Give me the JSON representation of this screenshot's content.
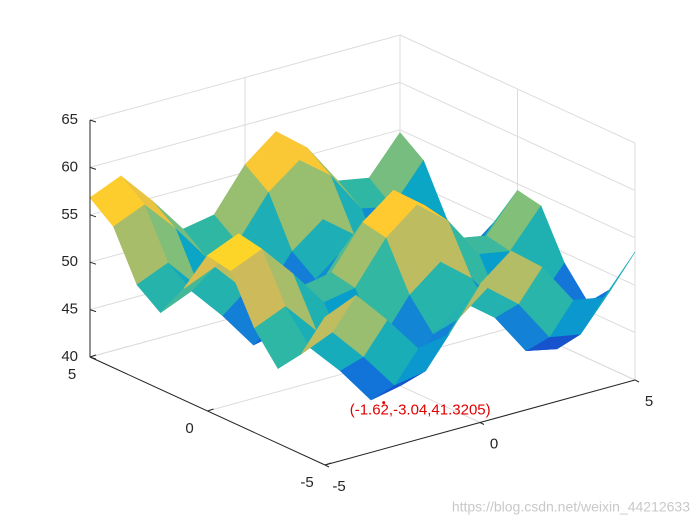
{
  "chart_data": {
    "type": "surface",
    "x": [
      -5,
      -4,
      -3,
      -2,
      -1,
      0,
      1,
      2,
      3,
      4,
      5
    ],
    "y": [
      -5,
      -4,
      -3,
      -2,
      -1,
      0,
      1,
      2,
      3,
      4,
      5
    ],
    "z": [
      [
        55.6,
        57.0,
        53.5,
        49.6,
        50.2,
        54.6,
        57.2,
        54.6,
        50.2,
        49.6,
        53.5
      ],
      [
        50.6,
        52.0,
        48.5,
        44.6,
        45.2,
        49.6,
        52.2,
        49.6,
        45.2,
        44.6,
        48.5
      ],
      [
        47.9,
        49.3,
        45.9,
        41.9,
        42.6,
        47.0,
        49.5,
        47.0,
        42.6,
        41.9,
        45.9
      ],
      [
        51.0,
        52.4,
        48.9,
        45.0,
        45.6,
        50.0,
        52.6,
        50.0,
        45.6,
        45.0,
        48.9
      ],
      [
        55.9,
        57.3,
        53.8,
        49.9,
        50.5,
        54.9,
        57.5,
        54.9,
        50.5,
        49.9,
        53.8
      ],
      [
        56.4,
        57.8,
        54.3,
        50.4,
        51.0,
        55.4,
        57.9,
        55.4,
        51.0,
        50.4,
        54.3
      ],
      [
        51.8,
        53.2,
        49.8,
        45.8,
        46.5,
        50.9,
        53.4,
        50.9,
        46.5,
        45.8,
        49.8
      ],
      [
        48.1,
        49.5,
        46.0,
        42.0,
        42.7,
        47.1,
        49.6,
        47.1,
        42.7,
        42.0,
        46.0
      ],
      [
        49.9,
        51.3,
        47.8,
        43.8,
        44.5,
        48.9,
        51.4,
        48.9,
        44.5,
        43.8,
        47.8
      ],
      [
        54.9,
        56.3,
        52.9,
        48.9,
        49.6,
        54.0,
        56.5,
        54.0,
        49.6,
        48.9,
        52.9
      ],
      [
        56.8,
        58.2,
        54.7,
        50.8,
        51.4,
        55.8,
        58.4,
        55.8,
        51.4,
        50.8,
        54.7
      ]
    ],
    "xlim": [
      -5,
      5
    ],
    "ylim": [
      -5,
      5
    ],
    "zlim": [
      40,
      65
    ],
    "xticks": [
      -5,
      0,
      5
    ],
    "yticks": [
      -5,
      0,
      5
    ],
    "zticks": [
      40,
      45,
      50,
      55,
      60,
      65
    ],
    "grid": true,
    "colormap": "parula",
    "annotation": {
      "text": "(-1.62,-3.04,41.3205)",
      "x": -1.62,
      "y": -3.04,
      "z": 41.3205,
      "color": "#e00000"
    }
  },
  "watermark": "https://blog.csdn.net/weixin_44212633"
}
